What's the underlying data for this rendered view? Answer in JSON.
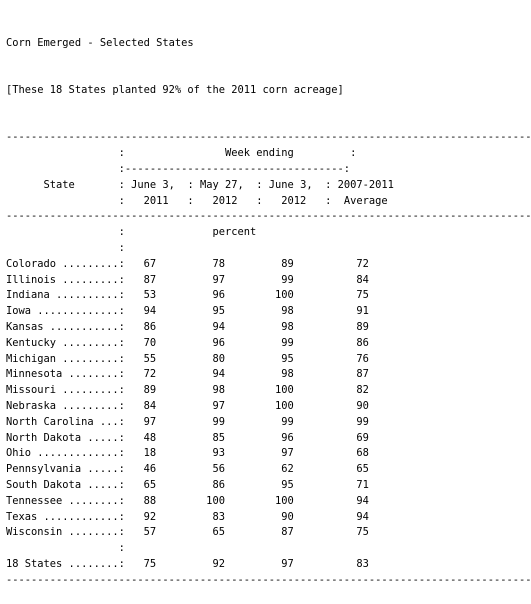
{
  "title": "Corn Emerged - Selected States",
  "subtitle": "[These 18 States planted 92% of the 2011 corn acreage]",
  "separator_char": "-",
  "separator_width": 88,
  "header": {
    "state_label": "State",
    "week_ending_label": "Week ending",
    "average_label_line1": "2007-2011",
    "average_label_line2": "Average",
    "columns": [
      {
        "line1": "June 3,",
        "line2": "2011"
      },
      {
        "line1": "May 27,",
        "line2": "2012"
      },
      {
        "line1": "June 3,",
        "line2": "2012"
      }
    ]
  },
  "unit_label": "percent",
  "rows": [
    {
      "state": "Colorado",
      "values": [
        "67",
        "78",
        "89",
        "72"
      ]
    },
    {
      "state": "Illinois",
      "values": [
        "87",
        "97",
        "99",
        "84"
      ]
    },
    {
      "state": "Indiana",
      "values": [
        "53",
        "96",
        "100",
        "75"
      ]
    },
    {
      "state": "Iowa",
      "values": [
        "94",
        "95",
        "98",
        "91"
      ]
    },
    {
      "state": "Kansas",
      "values": [
        "86",
        "94",
        "98",
        "89"
      ]
    },
    {
      "state": "Kentucky",
      "values": [
        "70",
        "96",
        "99",
        "86"
      ]
    },
    {
      "state": "Michigan",
      "values": [
        "55",
        "80",
        "95",
        "76"
      ]
    },
    {
      "state": "Minnesota",
      "values": [
        "72",
        "94",
        "98",
        "87"
      ]
    },
    {
      "state": "Missouri",
      "values": [
        "89",
        "98",
        "100",
        "82"
      ]
    },
    {
      "state": "Nebraska",
      "values": [
        "84",
        "97",
        "100",
        "90"
      ]
    },
    {
      "state": "North Carolina",
      "values": [
        "97",
        "99",
        "99",
        "99"
      ]
    },
    {
      "state": "North Dakota",
      "values": [
        "48",
        "85",
        "96",
        "69"
      ]
    },
    {
      "state": "Ohio",
      "values": [
        "18",
        "93",
        "97",
        "68"
      ]
    },
    {
      "state": "Pennsylvania",
      "values": [
        "46",
        "56",
        "62",
        "65"
      ]
    },
    {
      "state": "South Dakota",
      "values": [
        "65",
        "86",
        "95",
        "71"
      ]
    },
    {
      "state": "Tennessee",
      "values": [
        "88",
        "100",
        "100",
        "94"
      ]
    },
    {
      "state": "Texas",
      "values": [
        "92",
        "83",
        "90",
        "94"
      ]
    },
    {
      "state": "Wisconsin",
      "values": [
        "57",
        "65",
        "87",
        "75"
      ]
    }
  ],
  "total_row": {
    "state": "18 States",
    "values": [
      "75",
      "92",
      "97",
      "83"
    ]
  }
}
